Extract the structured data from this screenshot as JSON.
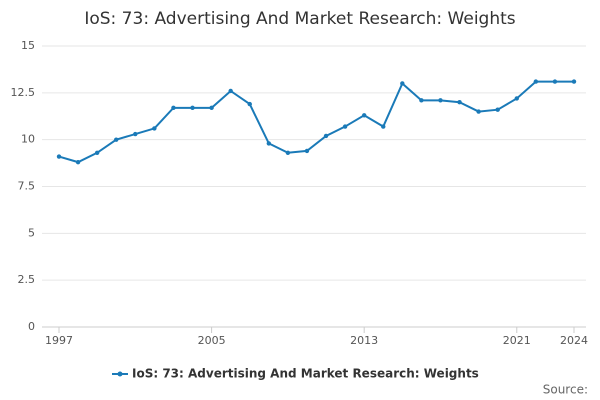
{
  "chart_data": {
    "type": "line",
    "title": "IoS: 73: Advertising And Market Research: Weights",
    "x": [
      1997,
      1998,
      1999,
      2000,
      2001,
      2002,
      2003,
      2004,
      2005,
      2006,
      2007,
      2008,
      2009,
      2010,
      2011,
      2012,
      2013,
      2014,
      2015,
      2016,
      2017,
      2018,
      2019,
      2020,
      2021,
      2022,
      2023,
      2024
    ],
    "series": [
      {
        "name": "IoS: 73: Advertising And Market Research: Weights",
        "color": "#1a7ab8",
        "values": [
          9.1,
          8.8,
          9.3,
          10.0,
          10.3,
          10.6,
          11.7,
          11.7,
          11.7,
          12.6,
          11.9,
          9.8,
          9.3,
          9.4,
          10.2,
          10.7,
          11.3,
          10.7,
          13.0,
          12.1,
          12.1,
          12.0,
          11.5,
          11.6,
          12.2,
          13.1,
          13.1,
          13.1
        ]
      }
    ],
    "xlim": [
      1997,
      2024
    ],
    "xticks": [
      1997,
      2005,
      2013,
      2021,
      2024
    ],
    "ylim": [
      0,
      15
    ],
    "yticks": [
      0,
      2.5,
      5,
      7.5,
      10,
      12.5,
      15
    ],
    "grid": true,
    "legend": "bottom",
    "source": "Source:"
  }
}
